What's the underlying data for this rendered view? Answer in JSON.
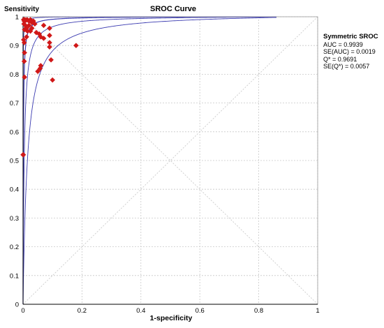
{
  "chart_data": {
    "type": "scatter",
    "title": "SROC Curve",
    "xlabel": "1-specificity",
    "ylabel": "Sensitivity",
    "xlim": [
      0,
      1
    ],
    "ylim": [
      0,
      1
    ],
    "x_ticks": [
      "0",
      "0.2",
      "0.4",
      "0.6",
      "0.8",
      "1"
    ],
    "y_ticks": [
      "0",
      "0.1",
      "0.2",
      "0.3",
      "0.4",
      "0.5",
      "0.6",
      "0.7",
      "0.8",
      "0.9",
      "1"
    ],
    "grid": true,
    "points": [
      {
        "x": 0.002,
        "y": 0.99
      },
      {
        "x": 0.004,
        "y": 0.985
      },
      {
        "x": 0.006,
        "y": 0.99
      },
      {
        "x": 0.01,
        "y": 0.988
      },
      {
        "x": 0.014,
        "y": 0.99
      },
      {
        "x": 0.02,
        "y": 0.985
      },
      {
        "x": 0.025,
        "y": 0.99
      },
      {
        "x": 0.03,
        "y": 0.98
      },
      {
        "x": 0.035,
        "y": 0.985
      },
      {
        "x": 0.04,
        "y": 0.975
      },
      {
        "x": 0.003,
        "y": 0.975
      },
      {
        "x": 0.008,
        "y": 0.97
      },
      {
        "x": 0.012,
        "y": 0.96
      },
      {
        "x": 0.02,
        "y": 0.97
      },
      {
        "x": 0.03,
        "y": 0.96
      },
      {
        "x": 0.015,
        "y": 0.95
      },
      {
        "x": 0.025,
        "y": 0.95
      },
      {
        "x": 0.005,
        "y": 0.955
      },
      {
        "x": 0.045,
        "y": 0.945
      },
      {
        "x": 0.055,
        "y": 0.94
      },
      {
        "x": 0.07,
        "y": 0.97
      },
      {
        "x": 0.09,
        "y": 0.96
      },
      {
        "x": 0.012,
        "y": 0.93
      },
      {
        "x": 0.06,
        "y": 0.93
      },
      {
        "x": 0.07,
        "y": 0.925
      },
      {
        "x": 0.09,
        "y": 0.935
      },
      {
        "x": 0.09,
        "y": 0.91
      },
      {
        "x": 0.002,
        "y": 0.92
      },
      {
        "x": 0.004,
        "y": 0.91
      },
      {
        "x": 0.005,
        "y": 0.875
      },
      {
        "x": 0.18,
        "y": 0.9
      },
      {
        "x": 0.09,
        "y": 0.895
      },
      {
        "x": 0.004,
        "y": 0.845
      },
      {
        "x": 0.06,
        "y": 0.83
      },
      {
        "x": 0.058,
        "y": 0.82
      },
      {
        "x": 0.05,
        "y": 0.81
      },
      {
        "x": 0.005,
        "y": 0.79
      },
      {
        "x": 0.095,
        "y": 0.85
      },
      {
        "x": 0.1,
        "y": 0.78
      },
      {
        "x": 0.0,
        "y": 0.52
      },
      {
        "x": 0.001,
        "y": 0.52
      }
    ],
    "curve": {
      "name": "Symmetric SROC",
      "dor": 1000
    },
    "diagonals": [
      "y = x",
      "y = 1 - x"
    ]
  },
  "summary": {
    "title": "Symmetric SROC",
    "auc": "AUC = 0.9939",
    "se_auc": "SE(AUC) = 0.0019",
    "q": "Q* = 0.9691",
    "se_q": "SE(Q*) = 0.0057"
  },
  "colors": {
    "curve": "#3a3ab0",
    "point": "#d01818",
    "grid": "#c8c8c8",
    "diagonal": "#d0d0d0"
  }
}
